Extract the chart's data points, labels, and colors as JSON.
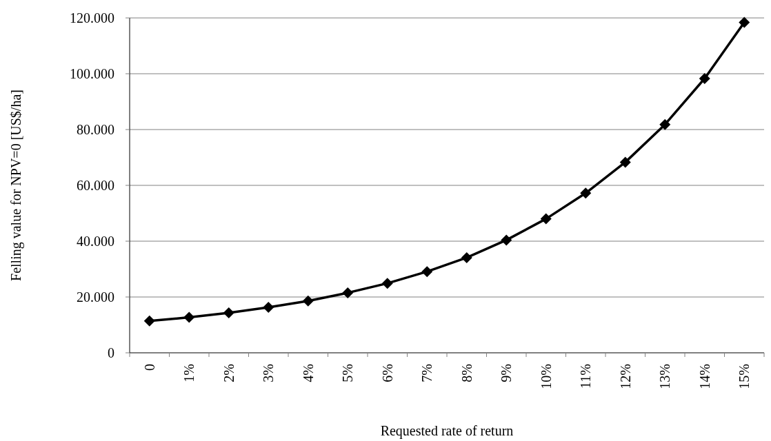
{
  "chart_data": {
    "type": "line",
    "xlabel": "Requested rate of return",
    "ylabel": "Felling value for NPV=0 [US$/ha]",
    "categories": [
      "0",
      "1%",
      "2%",
      "3%",
      "4%",
      "5%",
      "6%",
      "7%",
      "8%",
      "9%",
      "10%",
      "11%",
      "12%",
      "13%",
      "14%",
      "15%"
    ],
    "series": [
      {
        "color": "#000000",
        "values": [
          11400,
          12700,
          14300,
          16300,
          18600,
          21500,
          24900,
          29100,
          34100,
          40400,
          48000,
          57200,
          68300,
          81800,
          98300,
          118400
        ]
      }
    ],
    "ylim": [
      0,
      120000
    ],
    "yticks": [
      0,
      {
        "value": 20000,
        "label": "20.000"
      },
      {
        "value": 40000,
        "label": "40.000"
      },
      {
        "value": 60000,
        "label": "60.000"
      },
      {
        "value": 80000,
        "label": "80.000"
      },
      {
        "value": 100000,
        "label": "100.000"
      },
      {
        "value": 120000,
        "label": "120.000"
      }
    ],
    "grid": "y",
    "marker": "diamond",
    "line_style": "solid"
  }
}
